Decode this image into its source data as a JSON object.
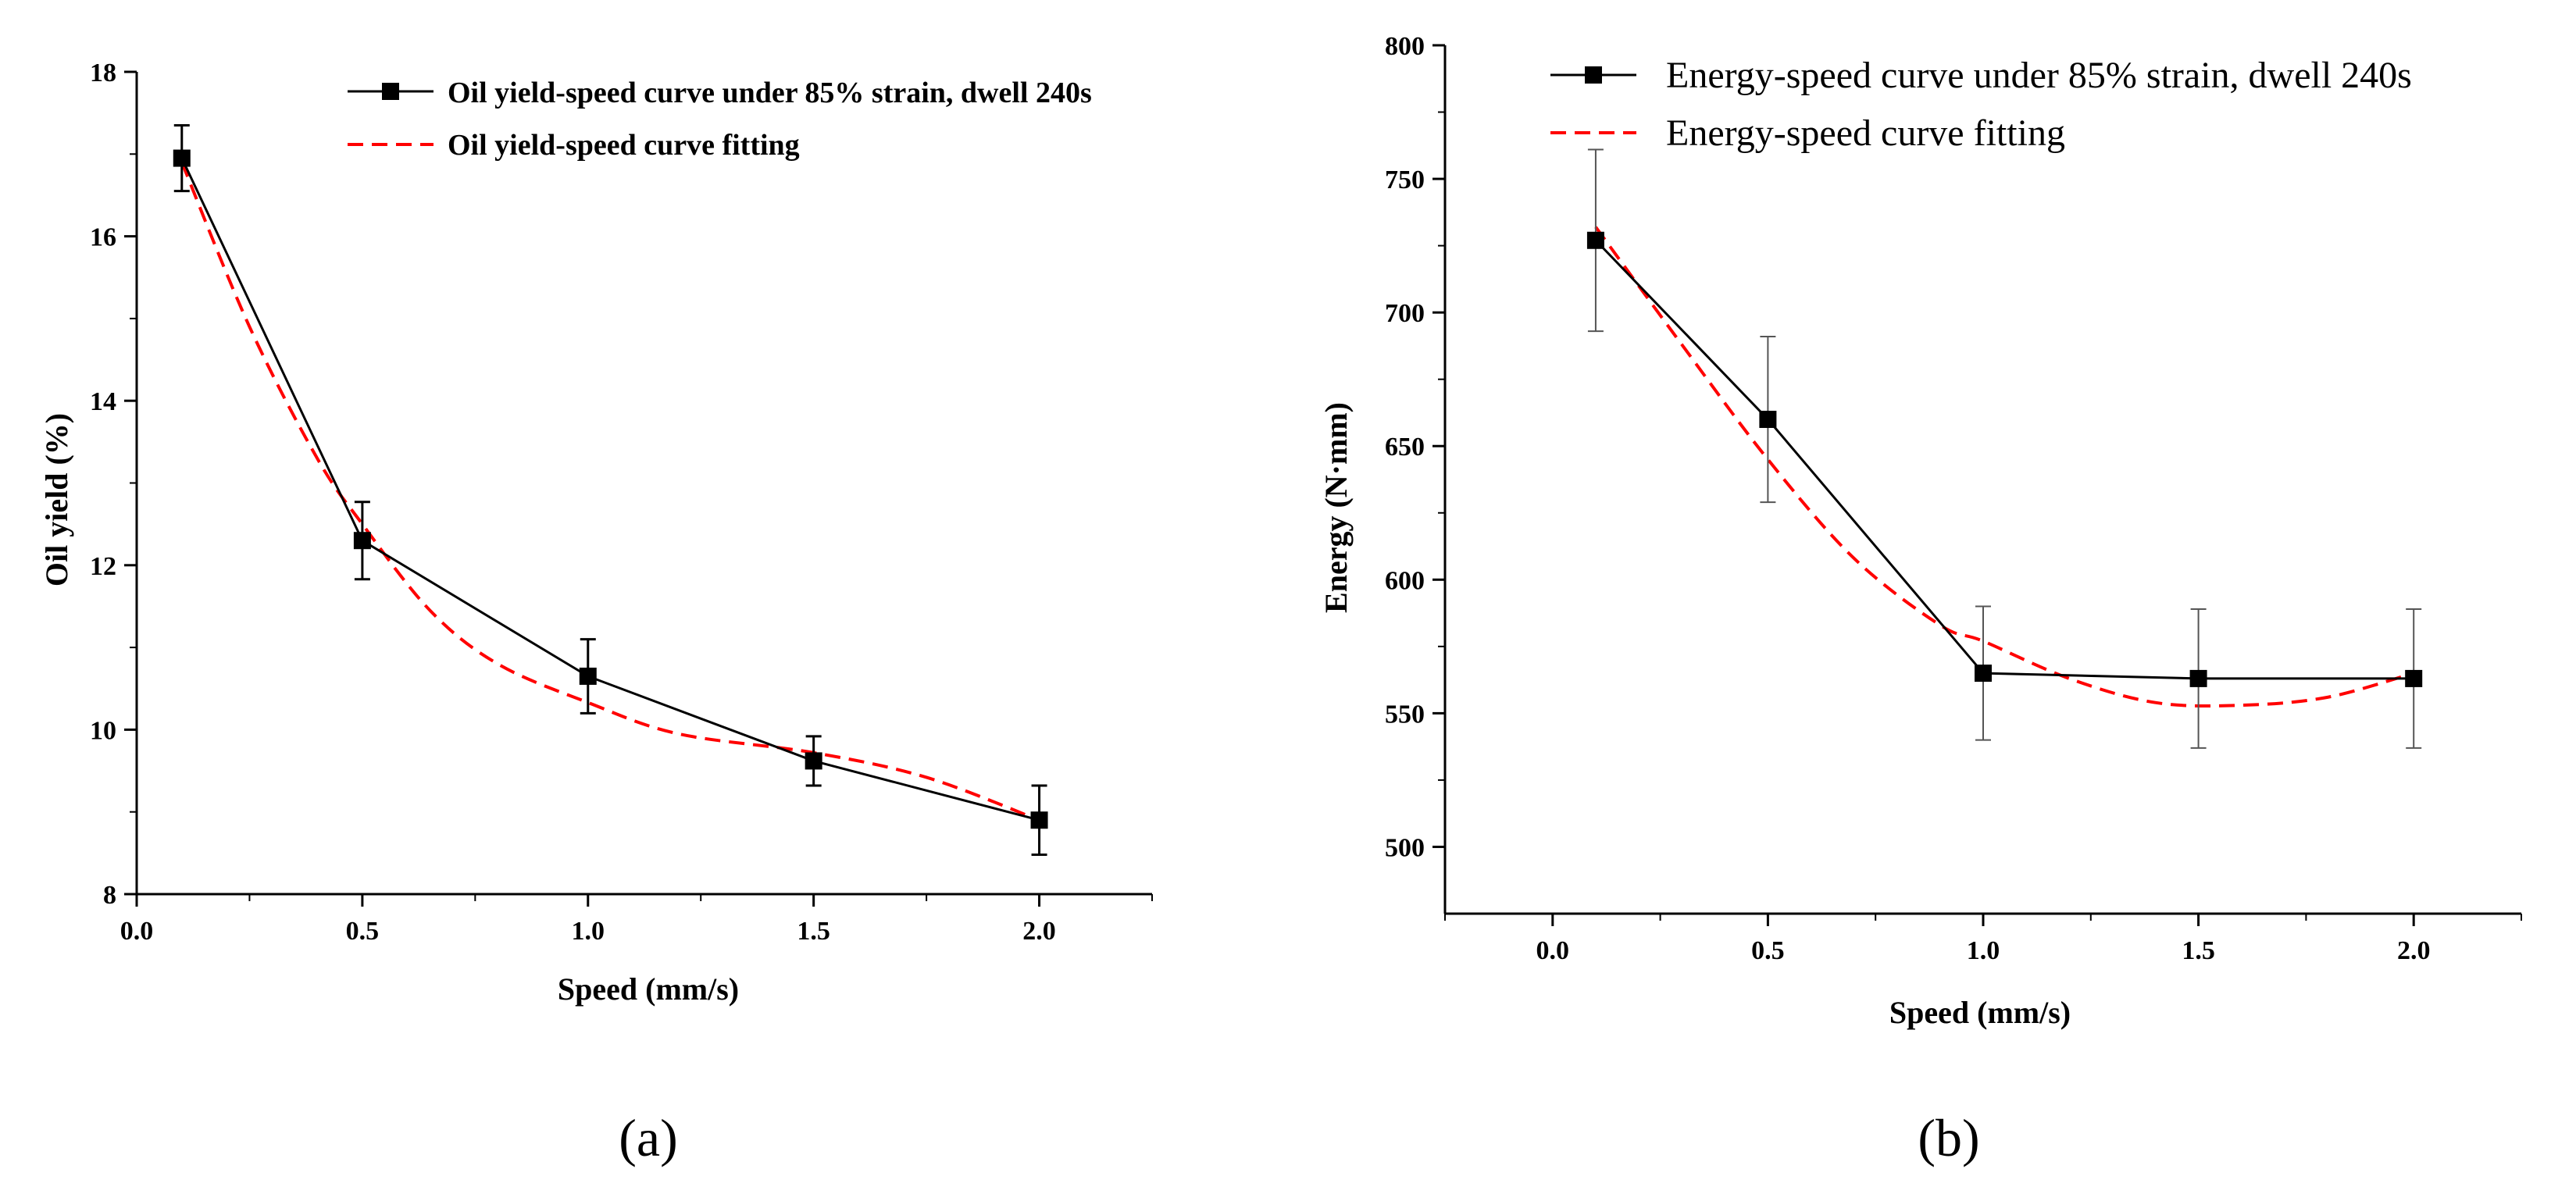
{
  "colors": {
    "data_line": "#000000",
    "fit_line": "#ff0000",
    "axis": "#000000",
    "errorbar": "#000000",
    "errorbar_b": "#555555"
  },
  "chart_data": [
    {
      "type": "line",
      "panel_label": "(a)",
      "xlabel": "Speed (mm/s)",
      "ylabel": "Oil yield (%)",
      "xlim": [
        0.0,
        2.25
      ],
      "ylim": [
        8,
        18
      ],
      "xticks": [
        0.0,
        0.5,
        1.0,
        1.5,
        2.0
      ],
      "xtick_labels": [
        "0.0",
        "0.5",
        "1.0",
        "1.5",
        "2.0"
      ],
      "yticks": [
        8,
        10,
        12,
        14,
        16,
        18
      ],
      "ytick_labels": [
        "8",
        "10",
        "12",
        "14",
        "16",
        "18"
      ],
      "legend_position": "top-right",
      "series": [
        {
          "name": "Oil yield-speed curve under 85% strain, dwell 240s",
          "style": "solid-square",
          "x": [
            0.1,
            0.5,
            1.0,
            1.5,
            2.0
          ],
          "y": [
            16.95,
            12.3,
            10.65,
            9.62,
            8.9
          ],
          "error": [
            0.4,
            0.47,
            0.45,
            0.3,
            0.42
          ]
        },
        {
          "name": "Oil yield-speed curve fitting",
          "style": "dashed",
          "x": [
            0.1,
            0.25,
            0.4,
            0.5,
            0.65,
            0.8,
            1.0,
            1.2,
            1.5,
            1.75,
            2.0
          ],
          "y": [
            16.9,
            14.9,
            13.3,
            12.5,
            11.45,
            10.8,
            10.33,
            9.95,
            9.72,
            9.42,
            8.9
          ]
        }
      ]
    },
    {
      "type": "line",
      "panel_label": "(b)",
      "xlabel": "Speed (mm/s)",
      "ylabel": "Energy (N·mm)",
      "xlim": [
        -0.25,
        2.25
      ],
      "ylim": [
        475,
        800
      ],
      "xticks": [
        0.0,
        0.5,
        1.0,
        1.5,
        2.0
      ],
      "xtick_labels": [
        "0.0",
        "0.5",
        "1.0",
        "1.5",
        "2.0"
      ],
      "yticks": [
        500,
        550,
        600,
        650,
        700,
        750,
        800
      ],
      "ytick_labels": [
        "500",
        "550",
        "600",
        "650",
        "700",
        "750",
        "800"
      ],
      "legend_position": "top-right",
      "series": [
        {
          "name": "Energy-speed curve under 85% strain, dwell 240s",
          "style": "solid-square",
          "x": [
            0.1,
            0.5,
            1.0,
            1.5,
            2.0
          ],
          "y": [
            727,
            660,
            565,
            563,
            563
          ],
          "error": [
            34,
            31,
            25,
            26,
            26
          ]
        },
        {
          "name": "Energy-speed curve fitting",
          "style": "dashed",
          "x": [
            0.1,
            0.3,
            0.5,
            0.7,
            0.9,
            1.0,
            1.2,
            1.4,
            1.6,
            1.8,
            2.0
          ],
          "y": [
            732,
            688,
            645,
            608,
            583,
            577,
            563,
            554,
            553,
            556,
            565
          ]
        }
      ]
    }
  ]
}
